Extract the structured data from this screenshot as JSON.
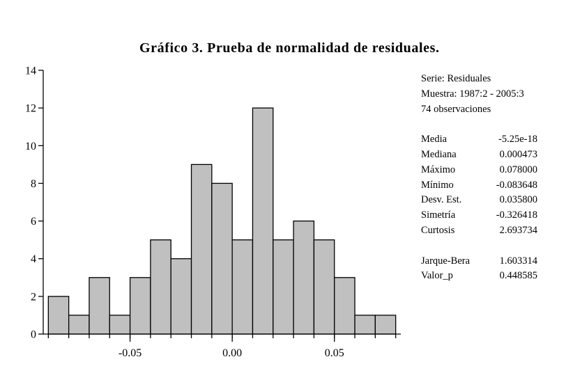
{
  "title": "Gráfico 3. Prueba de normalidad de residuales.",
  "stats": {
    "serie": "Serie: Residuales",
    "muestra": "Muestra: 1987:2 - 2005:3",
    "obs": "74 observaciones",
    "rows1": [
      {
        "label": "Media",
        "value": "-5.25e-18"
      },
      {
        "label": "Mediana",
        "value": "0.000473"
      },
      {
        "label": "Máximo",
        "value": "0.078000"
      },
      {
        "label": "Mínimo",
        "value": "-0.083648"
      },
      {
        "label": "Desv. Est.",
        "value": "0.035800"
      },
      {
        "label": "Simetría",
        "value": "-0.326418"
      },
      {
        "label": "Curtosis",
        "value": "2.693734"
      }
    ],
    "rows2": [
      {
        "label": "Jarque-Bera",
        "value": "1.603314"
      },
      {
        "label": "Valor_p",
        "value": "0.448585"
      }
    ]
  },
  "chart_data": {
    "type": "bar",
    "title": "Gráfico 3. Prueba de normalidad de residuales.",
    "bin_width": 0.01,
    "bins": [
      {
        "from": -0.09,
        "to": -0.08,
        "count": 2
      },
      {
        "from": -0.08,
        "to": -0.07,
        "count": 1
      },
      {
        "from": -0.07,
        "to": -0.06,
        "count": 3
      },
      {
        "from": -0.06,
        "to": -0.05,
        "count": 1
      },
      {
        "from": -0.05,
        "to": -0.04,
        "count": 3
      },
      {
        "from": -0.04,
        "to": -0.03,
        "count": 5
      },
      {
        "from": -0.03,
        "to": -0.02,
        "count": 4
      },
      {
        "from": -0.02,
        "to": -0.01,
        "count": 9
      },
      {
        "from": -0.01,
        "to": 0.0,
        "count": 8
      },
      {
        "from": 0.0,
        "to": 0.01,
        "count": 5
      },
      {
        "from": 0.01,
        "to": 0.02,
        "count": 12
      },
      {
        "from": 0.02,
        "to": 0.03,
        "count": 5
      },
      {
        "from": 0.03,
        "to": 0.04,
        "count": 6
      },
      {
        "from": 0.04,
        "to": 0.05,
        "count": 5
      },
      {
        "from": 0.05,
        "to": 0.06,
        "count": 3
      },
      {
        "from": 0.06,
        "to": 0.07,
        "count": 1
      },
      {
        "from": 0.07,
        "to": 0.08,
        "count": 1
      }
    ],
    "ylim": [
      0,
      14
    ],
    "yticks": [
      0,
      2,
      4,
      6,
      8,
      10,
      12,
      14
    ],
    "ytick_labels": [
      "0",
      "2",
      "4",
      "6",
      "8",
      "10",
      "12",
      "14"
    ],
    "xlim": [
      -0.0925,
      0.0825
    ],
    "xticks": [
      -0.05,
      0.0,
      0.05
    ],
    "xtick_labels": [
      "-0.05",
      "0.00",
      "0.05"
    ],
    "bar_color": "#c0c0c0",
    "edge_color": "#000000",
    "grid": false
  }
}
